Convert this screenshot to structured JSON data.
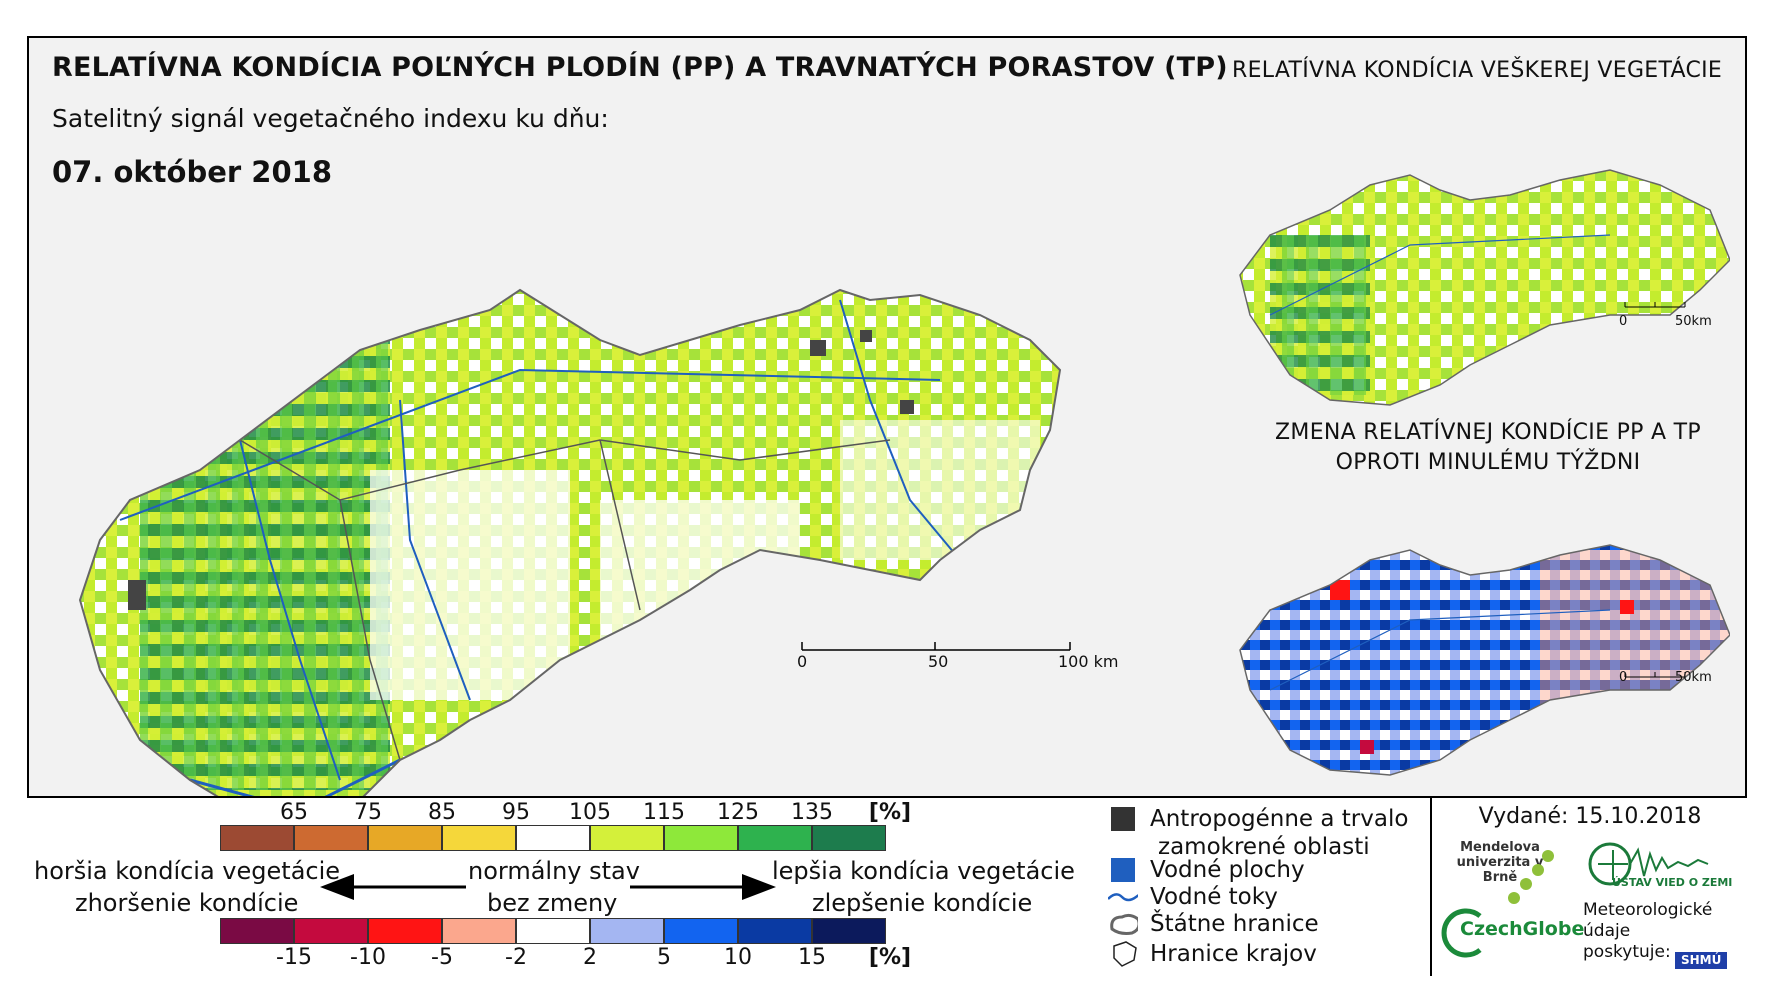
{
  "title": "RELATÍVNA KONDÍCIA POĽNÝCH PLODÍN (PP) A TRAVNATÝCH PORASTOV (TP)",
  "side_title": "RELATÍVNA KONDÍCIA VEŠKEREJ VEGETÁCIE",
  "subtitle": "Satelitný signál vegetačného indexu ku dňu:",
  "date": "07. október 2018",
  "inset_title_line1": "ZMENA RELATÍVNEJ KONDÍCIE PP A TP",
  "inset_title_line2": "OPROTI MINULÉMU TÝŽDNI",
  "main_scalebar": {
    "labels": [
      "0",
      "50",
      "100 km"
    ]
  },
  "small_scalebar": {
    "labels": [
      "0",
      "50km"
    ]
  },
  "condition_scale": {
    "colors": [
      "#9c4a33",
      "#cd6a31",
      "#e7a826",
      "#f5d73a",
      "#ffffff",
      "#d4f03a",
      "#8ee83a",
      "#2eb24e",
      "#1d7c4d"
    ],
    "ticks": [
      "65",
      "75",
      "85",
      "95",
      "105",
      "115",
      "125",
      "135"
    ],
    "unit": "[%]"
  },
  "change_scale": {
    "colors": [
      "#7a0a44",
      "#c40a3e",
      "#ff1414",
      "#fba78d",
      "#ffffff",
      "#a4b6f2",
      "#1264f0",
      "#0a3aa3",
      "#0c1a5c"
    ],
    "ticks": [
      "-15",
      "-10",
      "-5",
      "-2",
      "2",
      "5",
      "10",
      "15"
    ],
    "unit": "[%]"
  },
  "labels": {
    "worse_line1": "horšia kondícia vegetácie",
    "worse_line2": "zhoršenie kondície",
    "normal_line1": "normálny stav",
    "normal_line2": "bez zmeny",
    "better_line1": "lepšia kondícia vegetácie",
    "better_line2": "zlepšenie kondície"
  },
  "legend": {
    "anthropogenic_line1": "Antropogénne a trvalo",
    "anthropogenic_line2": "zamokrené oblasti",
    "water_areas": "Vodné plochy",
    "rivers": "Vodné toky",
    "state_border": "Štátne hranice",
    "region_border": "Hranice krajov"
  },
  "issued": "Vydané: 15.10.2018",
  "logos": {
    "mendel": "Mendelova univerzita v Brně",
    "czechglobe": "CzechGlobe",
    "uvz": "ÚSTAV VIED O ZEMI",
    "meteo_line1": "Meteorologické",
    "meteo_line2": "údaje",
    "meteo_line3": "poskytuje:",
    "shmu": "SHMÚ"
  }
}
